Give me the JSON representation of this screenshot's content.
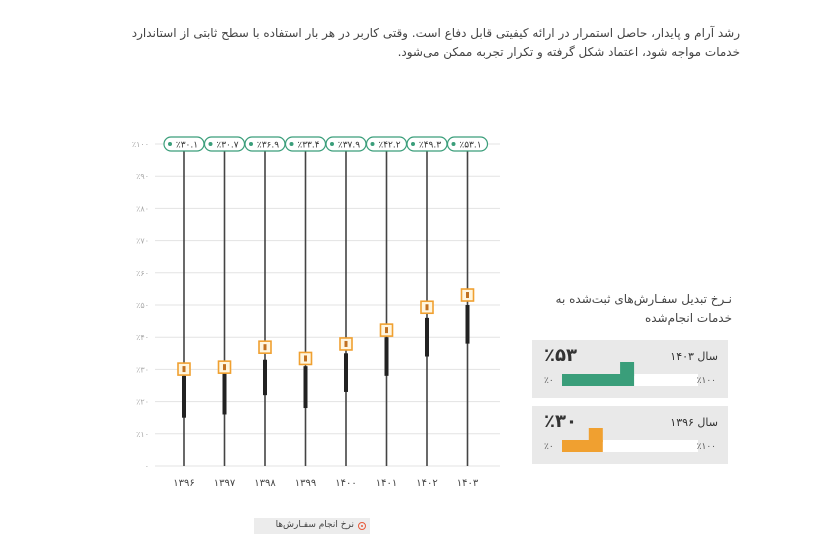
{
  "intro": {
    "text": "رشد آرام و پایدار، حاصل استمرار در ارائه کیفیتی قابل دفاع است. وقتی کاربر در هر بار استفاده با سطح ثابتی از استاندارد خدمات مواجه شود، اعتماد شکل گرفته و تکرار تجربه ممکن می‌شود."
  },
  "chart_data": {
    "type": "bar",
    "categories": [
      "۱۳۹۶",
      "۱۳۹۷",
      "۱۳۹۸",
      "۱۳۹۹",
      "۱۴۰۰",
      "۱۴۰۱",
      "۱۴۰۲",
      "۱۴۰۳"
    ],
    "values": [
      30.1,
      30.7,
      36.9,
      33.4,
      37.9,
      42.2,
      49.3,
      53.1
    ],
    "value_labels": [
      "٪۳۰.۱",
      "٪۳۰.۷",
      "٪۳۶.۹",
      "٪۳۳.۴",
      "٪۳۷.۹",
      "٪۴۲.۲",
      "٪۴۹.۳",
      "٪۵۳.۱"
    ],
    "range_low": [
      15,
      16,
      22,
      18,
      23,
      28,
      34,
      38
    ],
    "range_high": [
      28,
      29,
      33,
      31,
      35,
      40,
      46,
      50
    ],
    "ylim": [
      0,
      100
    ],
    "yticks": [
      0,
      10,
      20,
      30,
      40,
      50,
      60,
      70,
      80,
      90,
      100
    ],
    "ytick_labels": [
      "۰",
      "٪۱۰",
      "٪۲۰",
      "٪۳۰",
      "٪۴۰",
      "٪۵۰",
      "٪۶۰",
      "٪۷۰",
      "٪۸۰",
      "٪۹۰",
      "٪۱۰۰"
    ],
    "grid": true,
    "legend_label": "نرخ انجام سفـارش‌ها",
    "legend_position": "bottom-center",
    "colors": {
      "marker": "#f0a030",
      "label_border": "#3a9e7a",
      "stem": "#444444",
      "range": "#222222"
    }
  },
  "cards": {
    "title": "نـرخ تبدیل سفـارش‌های ثبت‌شده به خدمات انجام‌شده",
    "items": [
      {
        "year": "سال ۱۴۰۳",
        "percent": "٪۵۳",
        "value": 53,
        "scale_max": "٪۱۰۰",
        "scale_min": "٪۰",
        "color": "#3a9e7a",
        "track_color": "#ffffff"
      },
      {
        "year": "سال ۱۳۹۶",
        "percent": "٪۳۰",
        "value": 30,
        "scale_max": "٪۱۰۰",
        "scale_min": "٪۰",
        "color": "#f0a030",
        "track_color": "#ffffff"
      }
    ]
  }
}
